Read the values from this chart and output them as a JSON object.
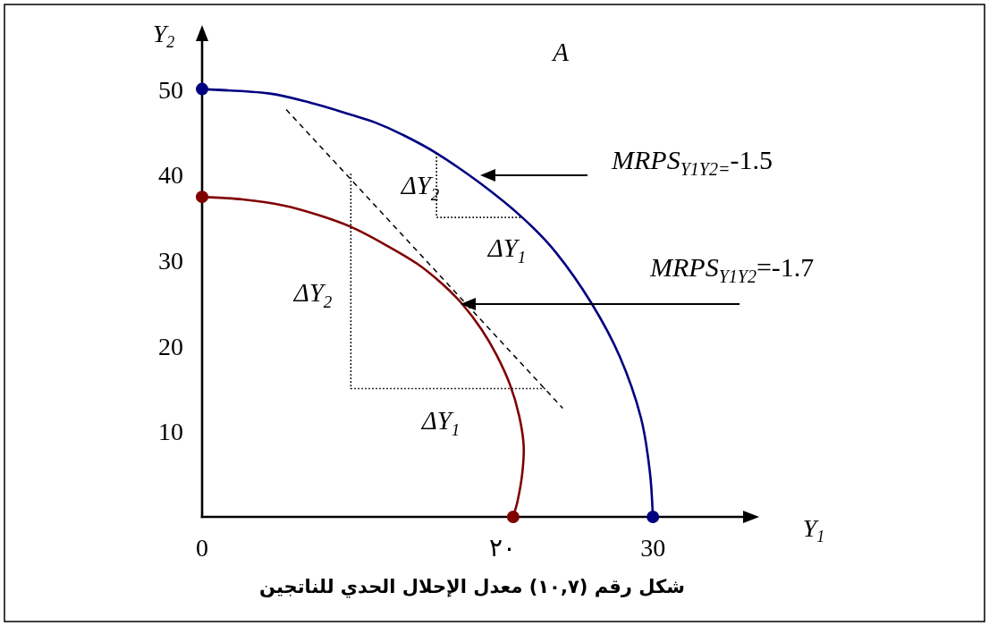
{
  "chart_data": {
    "type": "line",
    "title": "شكل رقم (١٠,٧) معدل الإحلال الحدي للناتجين",
    "xlabel": "Y$_{1}$",
    "ylabel": "Y$_{2}$",
    "xlim": [
      0,
      36
    ],
    "ylim": [
      0,
      55.6
    ],
    "xticks": [
      0,
      {
        "value": 20,
        "label": "٢٠"
      },
      30
    ],
    "yticks": [
      10,
      20,
      30,
      40,
      50
    ],
    "series": [
      {
        "color": "#000080",
        "x": [
          0,
          4.4,
          7.4,
          9.9,
          11.5,
          13.3,
          15.6,
          18.5,
          21.3,
          23.5,
          25.9,
          27.8,
          29.2,
          29.8,
          30
        ],
        "values": [
          50.0,
          49.5,
          48.3,
          47.0,
          46.1,
          44.7,
          42.5,
          39.0,
          35.0,
          31.0,
          25.0,
          18.7,
          11.6,
          5.2,
          0
        ]
      },
      {
        "color": "#800000",
        "x": [
          0,
          2.7,
          5.4,
          7.7,
          9.9,
          12.1,
          14.3,
          16.0,
          17.3,
          18.6,
          19.6,
          20.5,
          21.1,
          21.4,
          21.3,
          21.0,
          20.7
        ],
        "values": [
          37.4,
          37.1,
          36.4,
          35.3,
          33.9,
          31.9,
          29.6,
          27.2,
          24.9,
          21.9,
          18.9,
          15.4,
          11.8,
          8.3,
          5.0,
          1.9,
          0
        ]
      },
      {
        "type": "scatter",
        "marker": "circle",
        "color": "#000080",
        "x": [
          0,
          30
        ],
        "values": [
          50,
          0
        ]
      },
      {
        "type": "scatter",
        "marker": "circle",
        "color": "#800000",
        "x": [
          0,
          20.7
        ],
        "values": [
          37.4,
          0
        ]
      },
      {
        "color": "#000000",
        "line_style": "dashed",
        "x": [
          5.6,
          24.0
        ],
        "values": [
          47.6,
          12.7
        ]
      },
      {
        "color": "#000000",
        "line_style": "dotted",
        "x": [
          9.9,
          9.9,
          22.9
        ],
        "values": [
          40.1,
          15.0,
          15.0
        ]
      },
      {
        "color": "#000000",
        "line_style": "dotted",
        "x": [
          15.6,
          15.6,
          21.3
        ],
        "values": [
          42.5,
          35.0,
          35.0
        ]
      }
    ],
    "annotations": [
      "A",
      "MRPS$_{Y1Y2=}$-1.5",
      "MRPS$_{Y1Y2}$=-1.7",
      "ΔY$_{2}$",
      "ΔY$_{1}$",
      "ΔY$_{2}$",
      "ΔY$_{1}$"
    ]
  }
}
